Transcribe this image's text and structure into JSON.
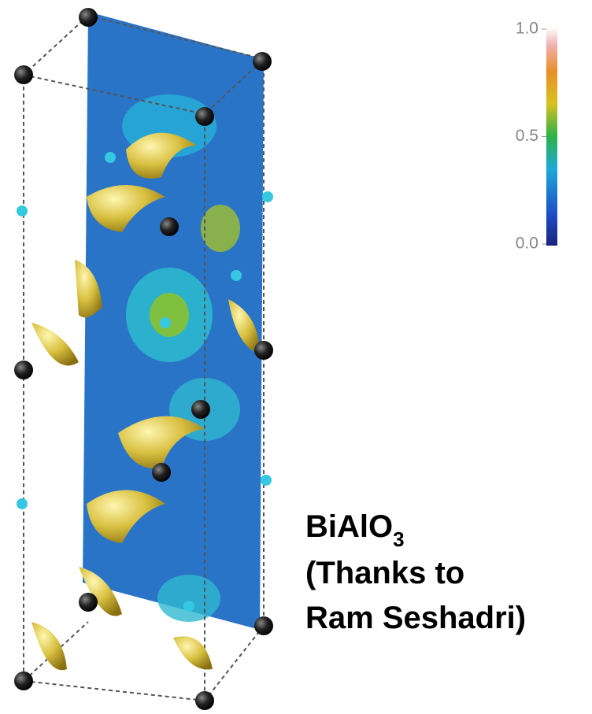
{
  "colorbar": {
    "lim": [
      0,
      1
    ],
    "ticks": [
      {
        "value": 1,
        "label": "1.0"
      },
      {
        "value": 0.5,
        "label": "0.5"
      },
      {
        "value": 0,
        "label": "0.0"
      }
    ]
  },
  "caption": {
    "formula": "BiAlO",
    "subscript": "3",
    "lines": [
      "(Thanks to",
      "Ram Seshadri)"
    ]
  }
}
